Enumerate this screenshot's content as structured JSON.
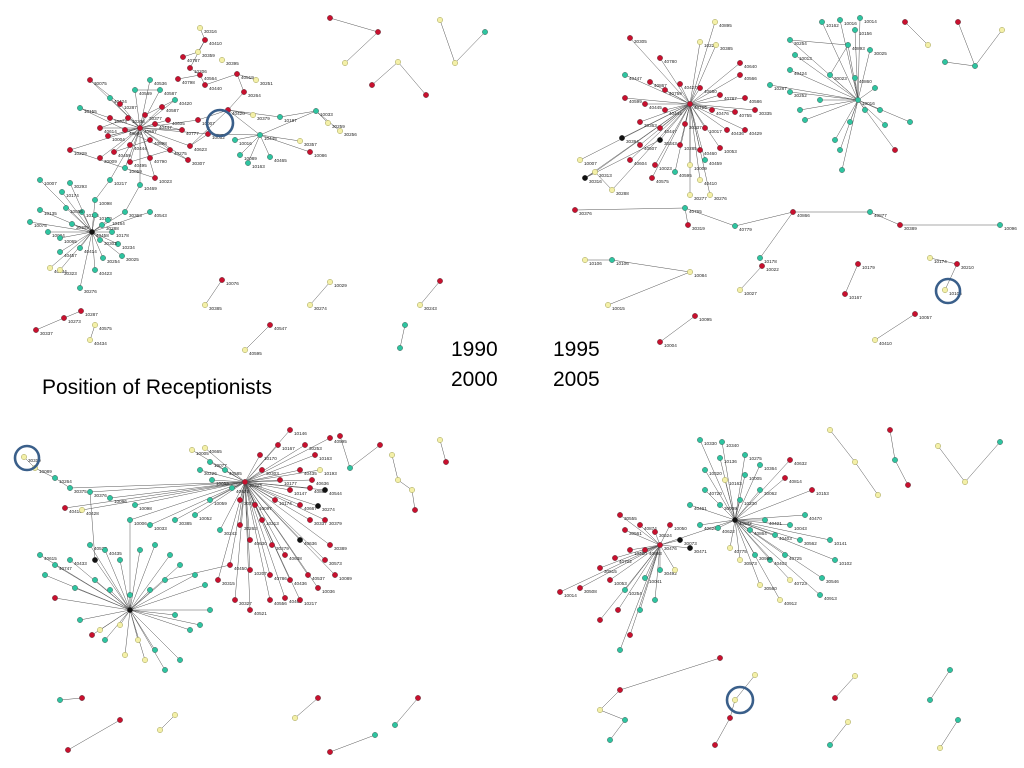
{
  "title": "Position of Receptionists",
  "years": [
    "1990",
    "1995",
    "2000",
    "2005"
  ],
  "legend_colors": {
    "red": "#c8102e",
    "teal": "#2ec4a0",
    "yellow": "#f4f0a8",
    "black": "#111111",
    "highlight_ring": "#3a5f8a",
    "edge": "#555555"
  },
  "network_labels": {
    "1990": [
      "30316",
      "40410",
      "30359",
      "30395",
      "40787",
      "10206",
      "40564",
      "40798",
      "40440",
      "40519",
      "30251",
      "30264",
      "40420",
      "10187",
      "10033",
      "30259",
      "30256",
      "30379",
      "30357",
      "10086",
      "40465",
      "10163",
      "10089",
      "10445",
      "10016",
      "30075",
      "40424",
      "10287",
      "40569",
      "40536",
      "40587",
      "40420",
      "40587",
      "30377",
      "10206",
      "10073",
      "40614",
      "10004",
      "40686",
      "40567",
      "40447",
      "40605",
      "40777",
      "40898",
      "40444",
      "40459",
      "40495",
      "40790",
      "40275",
      "40623",
      "10007",
      "10052",
      "30307",
      "30009",
      "10155",
      "10229",
      "10059",
      "10023",
      "10469",
      "10217",
      "10007",
      "30293",
      "10174",
      "10098",
      "10176",
      "10056",
      "10135",
      "10075",
      "10024",
      "10065",
      "10150",
      "10164",
      "10178",
      "10234",
      "30025",
      "30254",
      "40414",
      "40457",
      "40458",
      "30303",
      "30309",
      "40534",
      "30323",
      "40423",
      "30276",
      "30288",
      "30363",
      "40543",
      "30337",
      "10273",
      "10287",
      "40434",
      "40575",
      "30385",
      "10076",
      "40595",
      "40547",
      "30274",
      "10029",
      "30243"
    ],
    "1995": [
      "40895",
      "10229",
      "30385",
      "30305",
      "40780",
      "40640",
      "40566",
      "40447",
      "40867",
      "40759",
      "40427",
      "40680",
      "40787",
      "40586",
      "40599",
      "40445",
      "40444",
      "40756",
      "40476",
      "40755",
      "30335",
      "30363",
      "40447",
      "30337",
      "10017",
      "40436",
      "40429",
      "30394",
      "40507",
      "30343",
      "10285",
      "40460",
      "10053",
      "40604",
      "10023",
      "10009",
      "40410",
      "10007",
      "30313",
      "30316",
      "30288",
      "40575",
      "30277",
      "30276",
      "40595",
      "40459",
      "30376",
      "40765",
      "30319",
      "40779",
      "40866",
      "40877",
      "30389",
      "10096",
      "10106",
      "10106",
      "10084",
      "10015",
      "10178",
      "10179",
      "10167",
      "10174",
      "30210",
      "10105",
      "10027",
      "10022",
      "10095",
      "10004",
      "10057",
      "40410",
      "10162",
      "10016",
      "10014",
      "10156",
      "40893",
      "30025",
      "30254",
      "10013",
      "40424",
      "10287",
      "30252",
      "30023",
      "40860",
      "10016"
    ],
    "2000": [
      "30319",
      "10089",
      "10264",
      "30375",
      "30376",
      "40416",
      "40428",
      "10096",
      "10098",
      "10006",
      "10033",
      "30385",
      "10052",
      "10059",
      "10059",
      "30226",
      "10005",
      "40665",
      "10077",
      "40585",
      "40679",
      "30243",
      "30263",
      "40630",
      "10213",
      "10174",
      "10177",
      "30303",
      "30323",
      "30263",
      "10097",
      "30279",
      "40638",
      "40636",
      "30337",
      "40667",
      "10147",
      "40435",
      "40867",
      "30274",
      "30379",
      "30389",
      "30573",
      "40537",
      "40436",
      "40786",
      "10207",
      "40450",
      "30315",
      "30327",
      "40521",
      "40556",
      "40466",
      "10217",
      "10036",
      "10089",
      "30253",
      "10163",
      "10193",
      "10170",
      "10167",
      "10146",
      "40595",
      "40544",
      "40636",
      "40615",
      "40747",
      "40433",
      "40527",
      "40435"
    ],
    "2005": [
      "10330",
      "10340",
      "10275",
      "10364",
      "40632",
      "40814",
      "10153",
      "10136",
      "10320",
      "10163",
      "10005",
      "30062",
      "10230",
      "30009",
      "40720",
      "40461",
      "40626",
      "40622",
      "40642",
      "40864",
      "40421",
      "40403",
      "10043",
      "40470",
      "30562",
      "40725",
      "40403",
      "30986",
      "30573",
      "40775",
      "40723",
      "30560",
      "10141",
      "10102",
      "30546",
      "40913",
      "40912",
      "30555",
      "30561",
      "40874",
      "30524",
      "10050",
      "30073",
      "30471",
      "30476",
      "40893",
      "10460",
      "40702",
      "30515",
      "30508",
      "10014",
      "10053",
      "10254",
      "10041",
      "30492"
    ]
  }
}
